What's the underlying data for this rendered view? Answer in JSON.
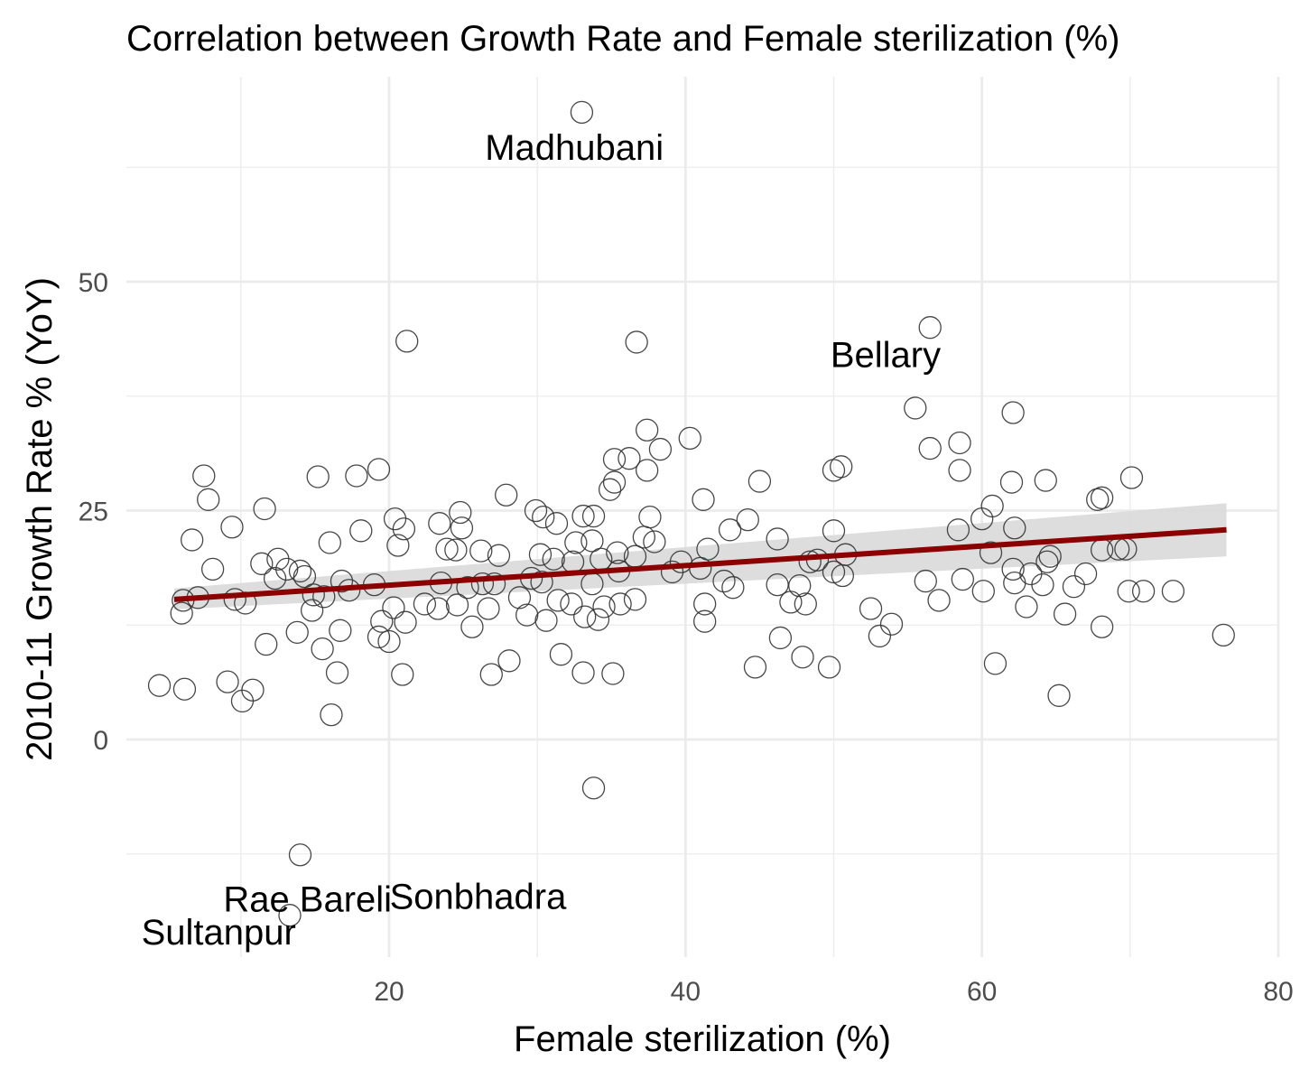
{
  "chart_data": {
    "type": "scatter",
    "title": "Correlation between Growth Rate and Female sterilization (%)",
    "xlabel": "Female sterilization (%)",
    "ylabel": "2010-11 Growth Rate % (YoY)",
    "xlim": [
      1.5,
      80
    ],
    "ylim": [
      -23.5,
      73
    ],
    "x_ticks": [
      20,
      40,
      60,
      80
    ],
    "y_ticks": [
      0,
      25,
      50
    ],
    "grid": true,
    "marker": "open-circle",
    "colors": {
      "points": "#333333",
      "trend": "#8b0000",
      "band": "#d9d9d9",
      "grid": "#ebebeb"
    },
    "trend": {
      "method": "linear",
      "x": [
        5.5,
        76.5
      ],
      "y": [
        15.3,
        22.9
      ],
      "ci_low": [
        14.2,
        20.0
      ],
      "ci_high": [
        16.5,
        25.8
      ]
    },
    "labels": [
      {
        "text": "Madhubani",
        "x": 32.5,
        "y": 63.3
      },
      {
        "text": "Bellary",
        "x": 53.5,
        "y": 40.7
      },
      {
        "text": "Rae Bareli",
        "x": 14.5,
        "y": -18.8
      },
      {
        "text": "Sonbhadra",
        "x": 26.0,
        "y": -18.5
      },
      {
        "text": "Sultanpur",
        "x": 8.5,
        "y": -42.0
      }
    ],
    "points": [
      [
        33,
        68.5
      ],
      [
        56.5,
        45
      ],
      [
        21.2,
        43.5
      ],
      [
        36.7,
        43.4
      ],
      [
        55.5,
        36.2
      ],
      [
        62.1,
        35.7
      ],
      [
        37.4,
        33.8
      ],
      [
        40.3,
        32.9
      ],
      [
        56.5,
        31.8
      ],
      [
        58.5,
        32.4
      ],
      [
        38.3,
        31.7
      ],
      [
        35.2,
        30.6
      ],
      [
        36.2,
        30.7
      ],
      [
        50.5,
        29.8
      ],
      [
        50.0,
        29.4
      ],
      [
        58.5,
        29.4
      ],
      [
        70.1,
        28.6
      ],
      [
        19.3,
        29.5
      ],
      [
        7.5,
        28.8
      ],
      [
        15.2,
        28.7
      ],
      [
        17.8,
        28.8
      ],
      [
        37.4,
        29.4
      ],
      [
        45.0,
        28.2
      ],
      [
        64.3,
        28.3
      ],
      [
        62.0,
        28.1
      ],
      [
        27.9,
        26.7
      ],
      [
        7.8,
        26.2
      ],
      [
        11.6,
        25.2
      ],
      [
        41.2,
        26.2
      ],
      [
        68.1,
        26.4
      ],
      [
        67.8,
        26.2
      ],
      [
        60.7,
        25.5
      ],
      [
        29.9,
        25.0
      ],
      [
        34.9,
        27.3
      ],
      [
        35.2,
        28.1
      ],
      [
        24.8,
        24.8
      ],
      [
        33.1,
        24.4
      ],
      [
        33.8,
        24.4
      ],
      [
        60.0,
        24.1
      ],
      [
        37.6,
        24.3
      ],
      [
        30.4,
        24.3
      ],
      [
        31.3,
        23.6
      ],
      [
        44.2,
        24.0
      ],
      [
        9.4,
        23.2
      ],
      [
        20.4,
        24.1
      ],
      [
        23.4,
        23.6
      ],
      [
        24.9,
        23.1
      ],
      [
        43.0,
        22.9
      ],
      [
        50.0,
        22.8
      ],
      [
        58.4,
        22.9
      ],
      [
        62.2,
        23.1
      ],
      [
        18.1,
        22.8
      ],
      [
        21.0,
        23.0
      ],
      [
        6.7,
        21.8
      ],
      [
        16.0,
        21.5
      ],
      [
        23.9,
        20.8
      ],
      [
        20.6,
        21.2
      ],
      [
        32.6,
        21.5
      ],
      [
        33.7,
        21.7
      ],
      [
        35.4,
        20.4
      ],
      [
        37.2,
        22.1
      ],
      [
        37.9,
        21.6
      ],
      [
        46.2,
        21.9
      ],
      [
        41.5,
        20.8
      ],
      [
        50.8,
        20.2
      ],
      [
        60.6,
        20.4
      ],
      [
        64.6,
        20.0
      ],
      [
        68.1,
        20.7
      ],
      [
        69.2,
        20.8
      ],
      [
        69.7,
        20.8
      ],
      [
        24.5,
        20.7
      ],
      [
        26.2,
        20.6
      ],
      [
        27.4,
        20.1
      ],
      [
        30.2,
        20.2
      ],
      [
        31.1,
        19.7
      ],
      [
        32.4,
        19.4
      ],
      [
        34.3,
        19.7
      ],
      [
        36.6,
        20.0
      ],
      [
        11.4,
        19.2
      ],
      [
        12.5,
        19.7
      ],
      [
        13.1,
        18.6
      ],
      [
        14.0,
        18.4
      ],
      [
        39.7,
        19.4
      ],
      [
        41.0,
        18.7
      ],
      [
        48.9,
        19.6
      ],
      [
        48.4,
        19.4
      ],
      [
        62.1,
        18.6
      ],
      [
        63.3,
        18.1
      ],
      [
        64.4,
        19.4
      ],
      [
        67.0,
        18.1
      ],
      [
        8.1,
        18.6
      ],
      [
        12.3,
        17.6
      ],
      [
        14.3,
        17.8
      ],
      [
        16.8,
        17.3
      ],
      [
        19.0,
        16.9
      ],
      [
        23.5,
        17.1
      ],
      [
        25.3,
        16.6
      ],
      [
        26.3,
        17.0
      ],
      [
        27.1,
        17.0
      ],
      [
        29.6,
        17.6
      ],
      [
        30.3,
        17.2
      ],
      [
        33.7,
        17.0
      ],
      [
        35.5,
        18.4
      ],
      [
        39.1,
        18.3
      ],
      [
        42.6,
        17.3
      ],
      [
        43.2,
        16.6
      ],
      [
        46.2,
        16.9
      ],
      [
        47.7,
        16.8
      ],
      [
        50.0,
        18.3
      ],
      [
        50.6,
        17.9
      ],
      [
        56.2,
        17.3
      ],
      [
        58.7,
        17.5
      ],
      [
        62.2,
        17.1
      ],
      [
        64.1,
        16.9
      ],
      [
        66.2,
        16.7
      ],
      [
        17.3,
        16.3
      ],
      [
        14.9,
        15.8
      ],
      [
        9.6,
        15.3
      ],
      [
        6.1,
        15.2
      ],
      [
        7.1,
        15.5
      ],
      [
        15.6,
        15.6
      ],
      [
        20.3,
        14.4
      ],
      [
        22.4,
        14.8
      ],
      [
        23.3,
        14.3
      ],
      [
        24.6,
        14.7
      ],
      [
        26.7,
        14.3
      ],
      [
        28.8,
        15.5
      ],
      [
        31.4,
        15.2
      ],
      [
        32.3,
        14.8
      ],
      [
        34.5,
        14.5
      ],
      [
        35.6,
        14.8
      ],
      [
        36.6,
        15.3
      ],
      [
        47.1,
        15.0
      ],
      [
        48.1,
        14.8
      ],
      [
        57.1,
        15.2
      ],
      [
        60.1,
        16.2
      ],
      [
        63.0,
        14.5
      ],
      [
        69.9,
        16.2
      ],
      [
        70.9,
        16.2
      ],
      [
        72.9,
        16.2
      ],
      [
        6.0,
        13.8
      ],
      [
        10.3,
        14.9
      ],
      [
        14.8,
        14.1
      ],
      [
        19.5,
        12.9
      ],
      [
        21.1,
        12.8
      ],
      [
        25.6,
        12.3
      ],
      [
        29.3,
        13.6
      ],
      [
        30.6,
        13.0
      ],
      [
        33.2,
        13.4
      ],
      [
        34.1,
        13.1
      ],
      [
        41.3,
        14.8
      ],
      [
        41.3,
        12.9
      ],
      [
        52.5,
        14.3
      ],
      [
        53.9,
        12.6
      ],
      [
        65.6,
        13.7
      ],
      [
        68.1,
        12.3
      ],
      [
        13.8,
        11.7
      ],
      [
        16.7,
        11.9
      ],
      [
        11.7,
        10.4
      ],
      [
        15.5,
        9.9
      ],
      [
        19.3,
        11.2
      ],
      [
        20.0,
        10.7
      ],
      [
        53.1,
        11.3
      ],
      [
        76.3,
        11.4
      ],
      [
        31.6,
        9.3
      ],
      [
        28.1,
        8.6
      ],
      [
        46.4,
        11.1
      ],
      [
        47.9,
        9.0
      ],
      [
        49.7,
        7.9
      ],
      [
        44.7,
        7.9
      ],
      [
        60.9,
        8.3
      ],
      [
        16.5,
        7.3
      ],
      [
        20.9,
        7.1
      ],
      [
        26.9,
        7.1
      ],
      [
        33.1,
        7.3
      ],
      [
        35.1,
        7.2
      ],
      [
        4.5,
        5.9
      ],
      [
        6.2,
        5.5
      ],
      [
        9.1,
        6.3
      ],
      [
        10.8,
        5.4
      ],
      [
        10.1,
        4.2
      ],
      [
        65.2,
        4.8
      ],
      [
        16.1,
        2.7
      ],
      [
        33.8,
        -5.3
      ],
      [
        14.0,
        -12.6
      ],
      [
        13.3,
        -19.2
      ]
    ]
  }
}
